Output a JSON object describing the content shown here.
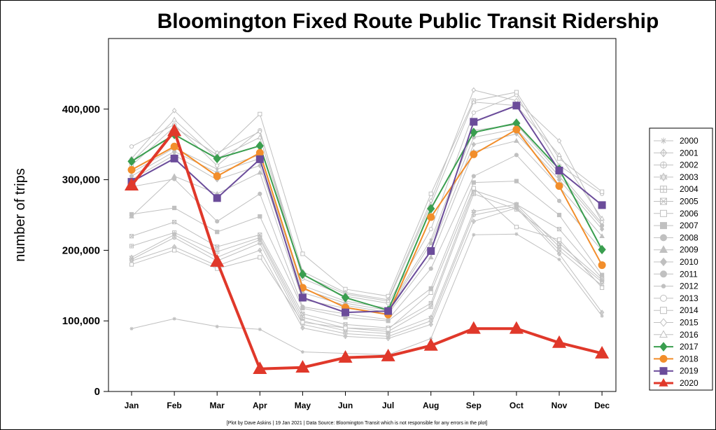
{
  "chart_data": {
    "type": "line",
    "title": "Bloomington Fixed Route Public Transit Ridership",
    "ylabel": "number of trips",
    "xlabel": "",
    "footnote": "[Plot by Dave Askins | 19 Jan 2021 | Data Source: Bloomington Transit which is not responsible for any errors in the plot]",
    "categories": [
      "Jan",
      "Feb",
      "Mar",
      "Apr",
      "May",
      "Jun",
      "Jul",
      "Aug",
      "Sep",
      "Oct",
      "Nov",
      "Dec"
    ],
    "ylim": [
      0,
      500000
    ],
    "yticks": [
      0,
      100000,
      200000,
      300000,
      400000
    ],
    "ytick_labels": [
      "0",
      "100,000",
      "200,000",
      "300,000",
      "400,000"
    ],
    "legend_position": "right",
    "grid": false,
    "series": [
      {
        "name": "2000",
        "color": "#c0c0c0",
        "marker": "asterisk",
        "values": [
          89000,
          103000,
          92000,
          88000,
          56000,
          54000,
          52000,
          75000,
          222000,
          223000,
          187000,
          107000
        ]
      },
      {
        "name": "2001",
        "color": "#c0c0c0",
        "marker": "diamond-plus",
        "values": [
          185000,
          205000,
          178000,
          200000,
          90000,
          78000,
          75000,
          95000,
          241000,
          260000,
          195000,
          112000
        ]
      },
      {
        "name": "2002",
        "color": "#c0c0c0",
        "marker": "circle-plus",
        "values": [
          187000,
          218000,
          185000,
          210000,
          95000,
          82000,
          78000,
          100000,
          250000,
          262000,
          200000,
          150000
        ]
      },
      {
        "name": "2003",
        "color": "#c0c0c0",
        "marker": "star",
        "values": [
          190000,
          222000,
          190000,
          215000,
          100000,
          86000,
          82000,
          105000,
          255000,
          265000,
          205000,
          155000
        ]
      },
      {
        "name": "2004",
        "color": "#c0c0c0",
        "marker": "square-plus",
        "values": [
          206000,
          225000,
          198000,
          218000,
          105000,
          90000,
          85000,
          120000,
          280000,
          258000,
          210000,
          158000
        ]
      },
      {
        "name": "2005",
        "color": "#c0c0c0",
        "marker": "square-x",
        "values": [
          220000,
          240000,
          205000,
          222000,
          110000,
          95000,
          90000,
          125000,
          285000,
          265000,
          230000,
          160000
        ]
      },
      {
        "name": "2006",
        "color": "#c0c0c0",
        "marker": "square-open",
        "values": [
          180000,
          200000,
          174000,
          190000,
          98000,
          90000,
          88000,
          140000,
          288000,
          233000,
          215000,
          147000
        ]
      },
      {
        "name": "2007",
        "color": "#c0c0c0",
        "marker": "square",
        "values": [
          251000,
          260000,
          226000,
          248000,
          118000,
          105000,
          100000,
          146000,
          296000,
          298000,
          250000,
          165000
        ]
      },
      {
        "name": "2008",
        "color": "#c0c0c0",
        "marker": "circle",
        "values": [
          290000,
          301000,
          241000,
          280000,
          120000,
          110000,
          102000,
          174000,
          305000,
          335000,
          270000,
          200000
        ]
      },
      {
        "name": "2009",
        "color": "#c0c0c0",
        "marker": "triangle",
        "values": [
          248000,
          305000,
          280000,
          310000,
          130000,
          118000,
          110000,
          190000,
          340000,
          355000,
          290000,
          220000
        ]
      },
      {
        "name": "2010",
        "color": "#c0c0c0",
        "marker": "diamond",
        "values": [
          300000,
          335000,
          300000,
          320000,
          140000,
          122000,
          112000,
          200000,
          350000,
          365000,
          300000,
          230000
        ]
      },
      {
        "name": "2011",
        "color": "#c0c0c0",
        "marker": "circle",
        "values": [
          305000,
          340000,
          310000,
          330000,
          145000,
          125000,
          115000,
          210000,
          360000,
          372000,
          305000,
          235000
        ]
      },
      {
        "name": "2012",
        "color": "#c0c0c0",
        "marker": "circle-small",
        "values": [
          310000,
          345000,
          315000,
          335000,
          150000,
          128000,
          118000,
          215000,
          370000,
          378000,
          310000,
          238000
        ]
      },
      {
        "name": "2013",
        "color": "#c0c0c0",
        "marker": "circle-open",
        "values": [
          347000,
          378000,
          320000,
          370000,
          160000,
          135000,
          125000,
          230000,
          395000,
          420000,
          320000,
          280000
        ]
      },
      {
        "name": "2014",
        "color": "#c0c0c0",
        "marker": "square-open",
        "values": [
          320000,
          375000,
          335000,
          393000,
          195000,
          145000,
          135000,
          280000,
          412000,
          424000,
          330000,
          283000
        ]
      },
      {
        "name": "2015",
        "color": "#c0c0c0",
        "marker": "diamond-open",
        "values": [
          330000,
          398000,
          338000,
          368000,
          170000,
          140000,
          130000,
          270000,
          427000,
          412000,
          355000,
          240000
        ]
      },
      {
        "name": "2016",
        "color": "#c0c0c0",
        "marker": "triangle-open",
        "values": [
          325000,
          385000,
          330000,
          360000,
          165000,
          138000,
          128000,
          265000,
          410000,
          405000,
          335000,
          245000
        ]
      },
      {
        "name": "2017",
        "color": "#3a9e4f",
        "marker": "diamond",
        "values": [
          326000,
          364000,
          330000,
          348000,
          166000,
          133000,
          115000,
          259000,
          367000,
          380000,
          315000,
          201000
        ]
      },
      {
        "name": "2018",
        "color": "#f28e2b",
        "marker": "circle",
        "values": [
          314000,
          347000,
          305000,
          338000,
          147000,
          119000,
          109000,
          247000,
          336000,
          371000,
          291000,
          179000
        ]
      },
      {
        "name": "2019",
        "color": "#6b4c9a",
        "marker": "square",
        "values": [
          297000,
          330000,
          274000,
          329000,
          133000,
          112000,
          114000,
          199000,
          382000,
          405000,
          313000,
          264000
        ]
      },
      {
        "name": "2020",
        "color": "#e0382a",
        "marker": "triangle",
        "values": [
          292000,
          369000,
          184000,
          32000,
          34000,
          48000,
          50000,
          65000,
          89000,
          89000,
          69000,
          54000
        ]
      }
    ]
  }
}
